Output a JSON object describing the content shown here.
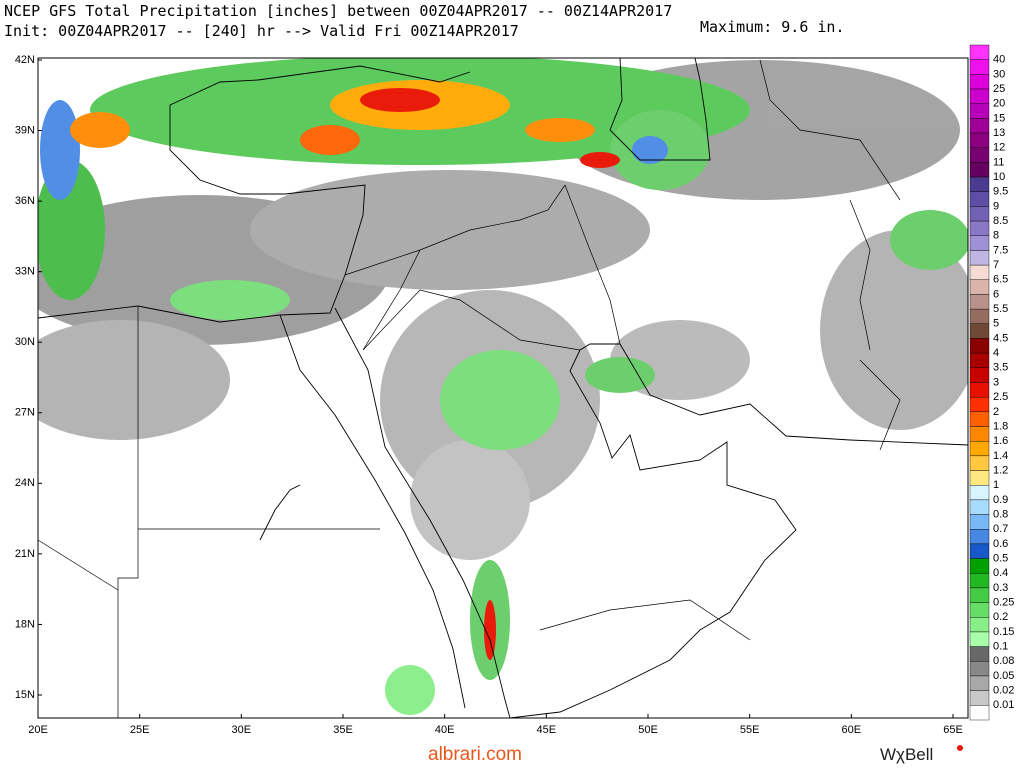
{
  "header": {
    "line1": "NCEP GFS Total Precipitation [inches] between 00Z04APR2017 -- 00Z14APR2017",
    "line2": "Init: 00Z04APR2017 -- [240] hr --> Valid Fri 00Z14APR2017",
    "maximum": "Maximum: 9.6 in."
  },
  "map": {
    "lat_labels": [
      "42N",
      "39N",
      "36N",
      "33N",
      "30N",
      "27N",
      "24N",
      "21N",
      "18N",
      "15N"
    ],
    "lon_labels": [
      "20E",
      "25E",
      "30E",
      "35E",
      "40E",
      "45E",
      "50E",
      "55E",
      "60E",
      "65E"
    ]
  },
  "colorbar": {
    "labels": [
      40,
      30,
      25,
      20,
      15,
      13,
      12,
      11,
      10,
      9.5,
      9,
      8.5,
      8,
      7.5,
      7,
      6.5,
      6,
      5.5,
      5,
      4.5,
      4,
      3.5,
      3,
      2.5,
      2,
      1.8,
      1.6,
      1.4,
      1.2,
      1,
      0.9,
      0.8,
      0.7,
      0.6,
      0.5,
      0.4,
      0.3,
      0.25,
      0.2,
      0.15,
      0.1,
      0.08,
      0.05,
      0.02,
      0.01
    ],
    "colors": [
      "#ff33ff",
      "#ee11ee",
      "#dd00dd",
      "#cc00cc",
      "#b800b8",
      "#a00098",
      "#8c0080",
      "#780070",
      "#660060",
      "#4a3a90",
      "#5e4ea6",
      "#7262b6",
      "#8878c6",
      "#9e90d4",
      "#c0b6e4",
      "#f4dcd4",
      "#d8b4aa",
      "#b8928a",
      "#946c60",
      "#704838",
      "#8b0000",
      "#a80000",
      "#c80000",
      "#e81000",
      "#ff3000",
      "#ff6000",
      "#ff8800",
      "#ffa800",
      "#ffc840",
      "#ffe880",
      "#d8f4ff",
      "#a8dcff",
      "#78b8f4",
      "#4888e4",
      "#1858c8",
      "#00a000",
      "#22b822",
      "#44cc44",
      "#66dd66",
      "#88ee88",
      "#aaffaa",
      "#686868",
      "#888888",
      "#a8a8a8",
      "#c8c8c8",
      "#ffffff"
    ]
  },
  "footer": {
    "site": "albrari.com",
    "brand": "WχBell"
  }
}
